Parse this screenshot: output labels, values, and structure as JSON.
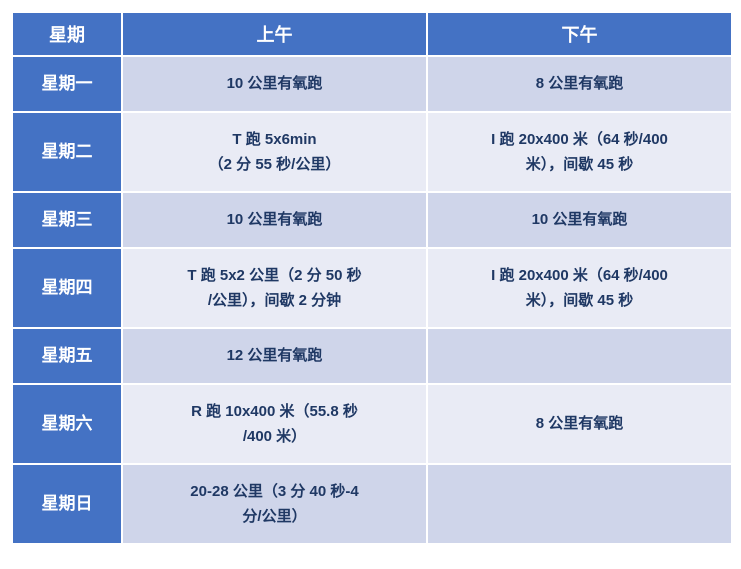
{
  "table": {
    "columns": [
      "星期",
      "上午",
      "下午"
    ],
    "header_bg": "#4472c4",
    "header_color": "#ffffff",
    "day_cell_bg": "#4472c4",
    "day_cell_color": "#ffffff",
    "odd_row_bg": "#cfd5ea",
    "even_row_bg": "#e9ebf5",
    "text_color": "#1f3864",
    "border_color": "#ffffff",
    "rows": [
      {
        "day": "星期一",
        "morning": "10 公里有氧跑",
        "afternoon": "8 公里有氧跑",
        "height": "single"
      },
      {
        "day": "星期二",
        "morning": "T 跑 5x6min\n（2 分 55 秒/公里）",
        "afternoon": "I 跑 20x400 米（64 秒/400\n米），间歇 45 秒",
        "height": "double"
      },
      {
        "day": "星期三",
        "morning": "10 公里有氧跑",
        "afternoon": "10 公里有氧跑",
        "height": "single"
      },
      {
        "day": "星期四",
        "morning": "T 跑 5x2 公里（2 分 50 秒\n/公里），间歇 2 分钟",
        "afternoon": "I 跑 20x400 米（64 秒/400\n米），间歇 45 秒",
        "height": "double"
      },
      {
        "day": "星期五",
        "morning": "12 公里有氧跑",
        "afternoon": "",
        "height": "single"
      },
      {
        "day": "星期六",
        "morning": "R 跑 10x400 米（55.8 秒\n/400 米）",
        "afternoon": "8 公里有氧跑",
        "height": "double"
      },
      {
        "day": "星期日",
        "morning": "20-28 公里（3 分 40 秒-4\n分/公里）",
        "afternoon": "",
        "height": "double"
      }
    ]
  }
}
